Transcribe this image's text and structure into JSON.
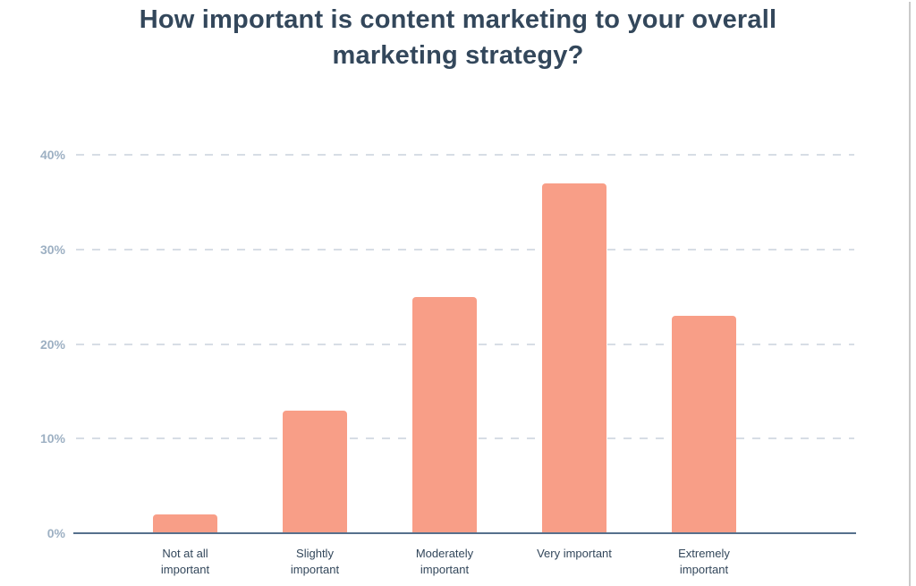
{
  "title": "How important is content marketing to your overall marketing strategy?",
  "colors": {
    "bar": "#F89E87",
    "title": "#33475B",
    "y_tick": "#9DB0C3",
    "x_label": "#33475B",
    "gridline": "#D7DDE5",
    "baseline": "#56708C"
  },
  "chart_data": {
    "type": "bar",
    "title": "How important is content marketing to your overall marketing strategy?",
    "categories": [
      "Not at all important",
      "Slightly important",
      "Moderately important",
      "Very important",
      "Extremely important"
    ],
    "values": [
      2,
      13,
      25,
      37,
      23
    ],
    "xlabel": "",
    "ylabel": "",
    "ylim": [
      0,
      40
    ],
    "yticks": [
      "0%",
      "10%",
      "20%",
      "30%",
      "40%"
    ],
    "grid": "dashed horizontal gridlines at each y tick",
    "legend": "none",
    "bar_color": "#F89E87"
  }
}
